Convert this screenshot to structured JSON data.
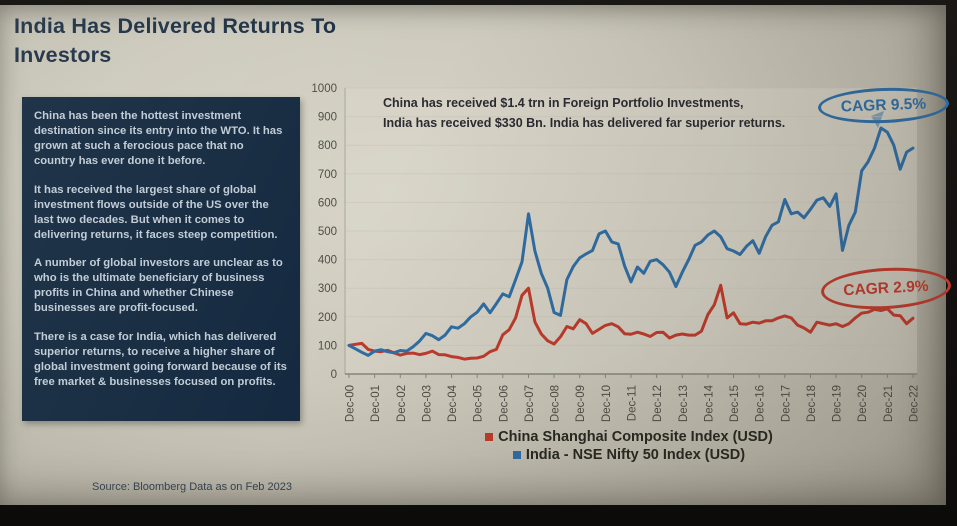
{
  "slide": {
    "title": "India Has Delivered Returns To Investors",
    "commentary": {
      "paragraphs": [
        "China has been the hottest investment destination since its entry into the WTO. It has grown at such a ferocious pace that no country has ever done it before.",
        "It has received the largest share of global investment flows outside of the US over the last two decades. But when it comes to delivering returns, it faces steep competition.",
        "A number of global investors are unclear as to who is the ultimate beneficiary of business profits in China and whether Chinese businesses are profit-focused.",
        "There is a case for India, which has delivered superior returns, to receive a higher share of global investment going forward because of its free market & businesses focused on profits."
      ]
    },
    "source": "Source: Bloomberg Data as on Feb 2023"
  },
  "chart_data": {
    "type": "line",
    "annotation": {
      "line1": "China has received $1.4 trn in Foreign Portfolio Investments,",
      "line2": "India has received $330 Bn. India has delivered far superior returns."
    },
    "x_tick_labels": [
      "Dec-00",
      "Dec-01",
      "Dec-02",
      "Dec-03",
      "Dec-04",
      "Dec-05",
      "Dec-06",
      "Dec-07",
      "Dec-08",
      "Dec-09",
      "Dec-10",
      "Dec-11",
      "Dec-12",
      "Dec-13",
      "Dec-14",
      "Dec-15",
      "Dec-16",
      "Dec-17",
      "Dec-18",
      "Dec-19",
      "Dec-20",
      "Dec-21",
      "Dec-22"
    ],
    "x_frequency": "quarterly, Dec-00 through Dec-22, both series indexed to 100 at Dec-00",
    "y_ticks": [
      0,
      100,
      200,
      300,
      400,
      500,
      600,
      700,
      800,
      900,
      1000
    ],
    "ylim": [
      0,
      1000
    ],
    "grid": false,
    "legend_position": "bottom",
    "series": [
      {
        "name": "China Shanghai Composite Index (USD)",
        "color": "#bf3a2b",
        "cagr_label": "CAGR 2.9%",
        "values": [
          100,
          104,
          107,
          86,
          80,
          78,
          83,
          74,
          66,
          72,
          73,
          68,
          72,
          80,
          68,
          67,
          61,
          58,
          52,
          55,
          56,
          62,
          78,
          86,
          137,
          155,
          196,
          275,
          300,
          182,
          140,
          116,
          105,
          130,
          166,
          158,
          190,
          176,
          142,
          156,
          170,
          176,
          165,
          141,
          139,
          146,
          140,
          131,
          145,
          146,
          126,
          136,
          140,
          136,
          136,
          150,
          208,
          242,
          310,
          196,
          214,
          176,
          174,
          181,
          178,
          186,
          186,
          196,
          203,
          196,
          171,
          161,
          146,
          181,
          176,
          171,
          176,
          166,
          176,
          196,
          213,
          216,
          226,
          222,
          228,
          206,
          204,
          176,
          195
        ]
      },
      {
        "name": "India - NSE Nifty 50 Index (USD)",
        "color": "#2e6da4",
        "cagr_label": "CAGR 9.5%",
        "values": [
          100,
          88,
          76,
          65,
          80,
          85,
          78,
          74,
          82,
          80,
          95,
          115,
          142,
          134,
          120,
          136,
          165,
          160,
          176,
          200,
          216,
          245,
          214,
          246,
          280,
          270,
          330,
          392,
          560,
          430,
          352,
          300,
          215,
          205,
          330,
          376,
          406,
          420,
          432,
          490,
          500,
          462,
          455,
          378,
          322,
          374,
          352,
          394,
          400,
          382,
          356,
          306,
          356,
          400,
          450,
          462,
          486,
          500,
          480,
          438,
          430,
          418,
          446,
          466,
          422,
          480,
          520,
          532,
          610,
          560,
          566,
          546,
          576,
          608,
          616,
          586,
          630,
          432,
          520,
          566,
          710,
          742,
          790,
          860,
          845,
          800,
          716,
          776,
          790
        ]
      }
    ]
  }
}
